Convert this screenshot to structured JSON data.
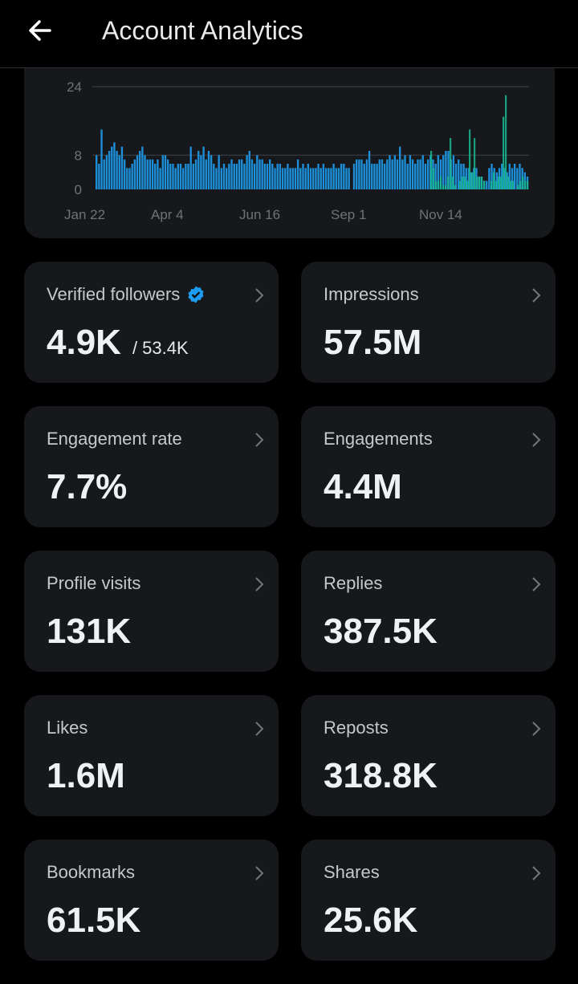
{
  "header": {
    "title": "Account Analytics",
    "back_icon": "arrow-left-icon"
  },
  "chart_data": {
    "type": "bar",
    "xtick_labels": [
      "Jan 22",
      "Apr 4",
      "Jun 16",
      "Sep 1",
      "Nov 14"
    ],
    "yticks": [
      0,
      8,
      24
    ],
    "ylim": [
      0,
      24
    ],
    "grid": true,
    "series": [
      {
        "color": "#1d8fd8",
        "values": [
          8,
          6,
          14,
          7,
          8,
          9,
          10,
          11,
          9,
          8,
          10,
          7,
          5,
          5,
          6,
          7,
          8,
          9,
          10,
          8,
          7,
          7,
          7,
          6,
          7,
          5,
          8,
          8,
          7,
          6,
          6,
          5,
          6,
          6,
          5,
          6,
          6,
          10,
          6,
          7,
          9,
          8,
          10,
          7,
          9,
          8,
          6,
          5,
          8,
          5,
          6,
          5,
          6,
          7,
          6,
          6,
          7,
          7,
          6,
          8,
          9,
          7,
          6,
          8,
          7,
          7,
          6,
          6,
          7,
          6,
          5,
          6,
          6,
          5,
          5,
          6,
          5,
          5,
          5,
          7,
          5,
          6,
          5,
          6,
          5,
          5,
          5,
          6,
          5,
          6,
          5,
          5,
          5,
          6,
          5,
          5,
          6,
          6,
          5,
          5,
          0,
          6,
          7,
          7,
          7,
          6,
          7,
          9,
          6,
          6,
          6,
          7,
          7,
          6,
          7,
          8,
          7,
          8,
          7,
          10,
          7,
          8,
          6,
          8,
          7,
          6,
          7,
          7,
          8,
          6,
          7,
          8,
          7,
          6,
          8,
          7,
          8,
          9,
          9,
          7,
          8,
          6,
          7,
          6,
          6,
          5,
          5,
          4,
          5,
          5,
          3,
          3,
          2,
          2,
          5,
          6,
          5,
          4,
          5,
          6,
          5,
          4,
          6,
          5,
          6,
          5,
          6,
          5,
          4,
          3
        ]
      },
      {
        "color": "#17b890",
        "values": [
          0,
          0,
          0,
          0,
          0,
          0,
          0,
          0,
          0,
          0,
          0,
          0,
          0,
          0,
          0,
          0,
          0,
          0,
          0,
          0,
          0,
          0,
          0,
          0,
          0,
          0,
          0,
          0,
          0,
          0,
          0,
          0,
          0,
          0,
          0,
          0,
          0,
          0,
          0,
          0,
          0,
          0,
          0,
          0,
          0,
          0,
          0,
          0,
          0,
          0,
          0,
          0,
          0,
          0,
          0,
          0,
          0,
          0,
          0,
          0,
          0,
          0,
          0,
          0,
          0,
          0,
          0,
          0,
          0,
          0,
          0,
          0,
          0,
          0,
          0,
          0,
          0,
          0,
          0,
          0,
          0,
          0,
          0,
          0,
          0,
          0,
          0,
          0,
          0,
          0,
          0,
          0,
          0,
          0,
          0,
          0,
          0,
          0,
          0,
          0,
          0,
          0,
          0,
          0,
          0,
          0,
          0,
          0,
          0,
          0,
          0,
          0,
          0,
          0,
          0,
          0,
          0,
          0,
          0,
          0,
          0,
          0,
          0,
          0,
          0,
          0,
          0,
          0,
          0,
          0,
          0,
          0,
          0,
          0,
          0,
          0,
          0,
          0,
          0,
          9,
          5,
          2,
          2,
          3,
          1,
          1,
          3,
          12,
          3,
          1,
          0,
          2,
          3,
          3,
          2,
          14,
          4,
          12,
          3,
          3,
          3,
          2,
          0,
          0,
          2,
          4,
          2,
          3,
          3,
          17,
          22,
          3,
          2,
          2,
          0,
          1,
          2,
          3,
          2,
          2
        ]
      }
    ]
  },
  "metrics": [
    {
      "label": "Verified followers",
      "value": "4.9K",
      "sub": "/ 53.4K",
      "verified": true
    },
    {
      "label": "Impressions",
      "value": "57.5M"
    },
    {
      "label": "Engagement rate",
      "value": "7.7%"
    },
    {
      "label": "Engagements",
      "value": "4.4M"
    },
    {
      "label": "Profile visits",
      "value": "131K"
    },
    {
      "label": "Replies",
      "value": "387.5K"
    },
    {
      "label": "Likes",
      "value": "1.6M"
    },
    {
      "label": "Reposts",
      "value": "318.8K"
    },
    {
      "label": "Bookmarks",
      "value": "61.5K"
    },
    {
      "label": "Shares",
      "value": "25.6K"
    }
  ],
  "colors": {
    "background": "#000000",
    "card": "#16181c",
    "verified_badge": "#1d9bf0"
  }
}
